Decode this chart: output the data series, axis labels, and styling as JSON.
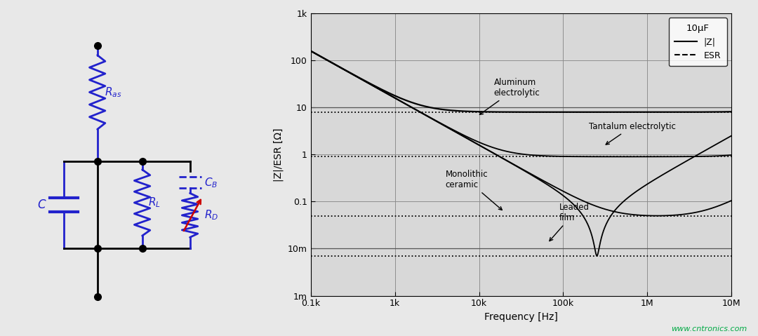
{
  "bg_color": "#e8e8e8",
  "circuit_color": "#2222cc",
  "black": "#000000",
  "red": "#cc0000",
  "watermark": "www.cntronics.com",
  "watermark_color": "#00aa44",
  "chart_title": "10μF",
  "xlabel": "Frequency [Hz]",
  "ylabel": "|Z|/ESR [Ω]",
  "legend_solid": "|Z|",
  "legend_dashed": "ESR",
  "freq_ticks": [
    100,
    1000,
    10000,
    100000,
    1000000,
    10000000
  ],
  "freq_labels": [
    "0.1k",
    "1k",
    "10k",
    "100k",
    "1M",
    "10M"
  ],
  "y_ticks": [
    0.001,
    0.01,
    0.1,
    1,
    10,
    100,
    1000
  ],
  "y_labels": [
    "1m",
    "10m",
    "0.1",
    "1",
    "10",
    "100",
    "1k"
  ]
}
